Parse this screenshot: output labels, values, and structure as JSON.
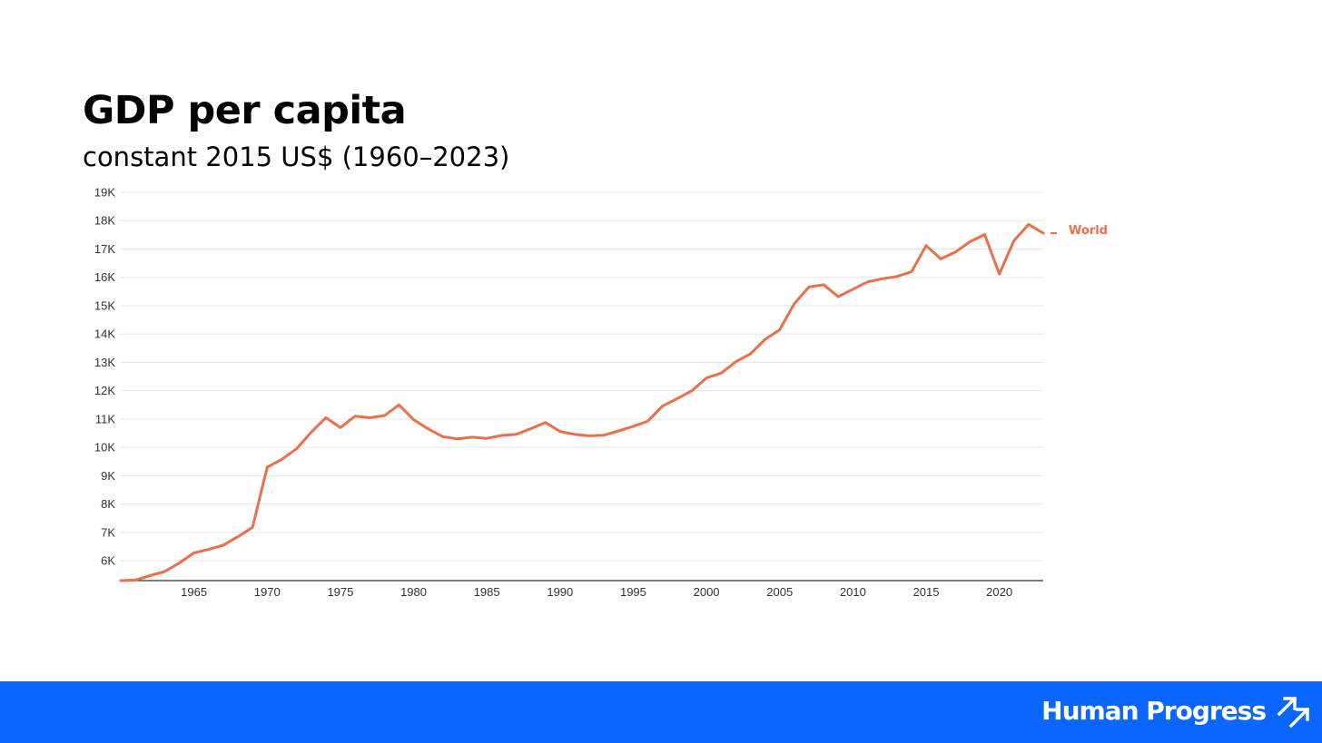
{
  "header": {
    "title": "GDP per capita",
    "subtitle": "constant 2015 US$ (1960–2023)"
  },
  "footer": {
    "brand": "Human Progress",
    "background": "#0a66ff",
    "logo_icon": "double-arrow-up-right-icon"
  },
  "colors": {
    "series": "#ec6f4b",
    "grid": "#e6e6e6",
    "axis": "#333333"
  },
  "chart_data": {
    "type": "line",
    "title": "GDP per capita",
    "subtitle": "constant 2015 US$ (1960–2023)",
    "xlabel": "",
    "ylabel": "",
    "xlim": [
      1960,
      2023
    ],
    "ylim": [
      5300,
      19000
    ],
    "grid": true,
    "legend": "right-end-label",
    "x_ticks": [
      1965,
      1970,
      1975,
      1980,
      1985,
      1990,
      1995,
      2000,
      2005,
      2010,
      2015,
      2020
    ],
    "y_ticks": [
      {
        "value": 6000,
        "label": "6K"
      },
      {
        "value": 7000,
        "label": "7K"
      },
      {
        "value": 8000,
        "label": "8K"
      },
      {
        "value": 9000,
        "label": "9K"
      },
      {
        "value": 10000,
        "label": "10K"
      },
      {
        "value": 11000,
        "label": "11K"
      },
      {
        "value": 12000,
        "label": "12K"
      },
      {
        "value": 13000,
        "label": "13K"
      },
      {
        "value": 14000,
        "label": "14K"
      },
      {
        "value": 15000,
        "label": "15K"
      },
      {
        "value": 16000,
        "label": "16K"
      },
      {
        "value": 17000,
        "label": "17K"
      },
      {
        "value": 18000,
        "label": "18K"
      },
      {
        "value": 19000,
        "label": "19K"
      }
    ],
    "series": [
      {
        "name": "World",
        "x": [
          1960,
          1961,
          1962,
          1963,
          1964,
          1965,
          1966,
          1967,
          1968,
          1969,
          1970,
          1971,
          1972,
          1973,
          1974,
          1975,
          1976,
          1977,
          1978,
          1979,
          1980,
          1981,
          1982,
          1983,
          1984,
          1985,
          1986,
          1987,
          1988,
          1989,
          1990,
          1991,
          1992,
          1993,
          1994,
          1995,
          1996,
          1997,
          1998,
          1999,
          2000,
          2001,
          2002,
          2003,
          2004,
          2005,
          2006,
          2007,
          2008,
          2009,
          2010,
          2011,
          2012,
          2013,
          2014,
          2015,
          2016,
          2017,
          2018,
          2019,
          2020,
          2021,
          2022,
          2023
        ],
        "y": [
          5300,
          5320,
          5480,
          5620,
          5920,
          6280,
          6400,
          6550,
          6850,
          7180,
          9300,
          9580,
          9950,
          10530,
          11050,
          10700,
          11100,
          11050,
          11120,
          11500,
          10980,
          10650,
          10380,
          10300,
          10360,
          10320,
          10420,
          10460,
          10660,
          10880,
          10560,
          10460,
          10410,
          10430,
          10580,
          10740,
          10930,
          11460,
          11720,
          12000,
          12450,
          12620,
          13020,
          13300,
          13810,
          14150,
          15070,
          15660,
          15740,
          15320,
          15580,
          15840,
          15950,
          16030,
          16200,
          17120,
          16650,
          16890,
          17260,
          17510,
          16120,
          17290,
          17870,
          17560
        ]
      }
    ]
  }
}
